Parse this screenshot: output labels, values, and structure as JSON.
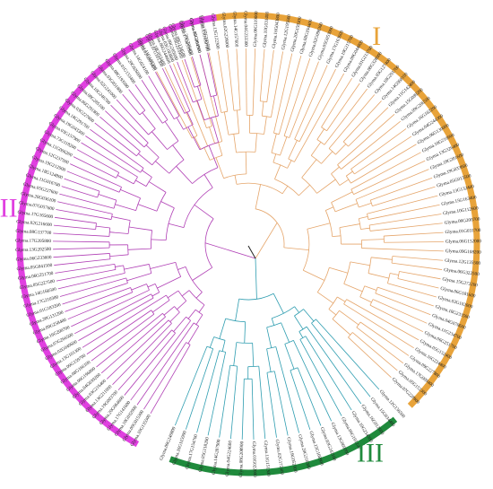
{
  "figure": {
    "clades": [
      {
        "id": "I",
        "label": "I",
        "color": "#E8A33A",
        "branch_color": "#E5A56A",
        "leaves": [
          "Glyma.11G188300",
          "Glyma.18G053400",
          "Glyma.03G183800",
          "Glyma.09G203900",
          "Glyma.17G051600",
          "Glyma.06G081900",
          "Glyma.07G203500",
          "Glyma.13G122300",
          "Glyma.02G226000",
          "Glyma.14G157600",
          "Glyma.04G233300",
          "Glyma.06G119000",
          "Glyma.10G031400",
          "Glyma.16G043800",
          "Glyma.12G195600",
          "Glyma.20G159300",
          "Glyma.08G194400",
          "Glyma.02G098300",
          "Glyma.05G053000",
          "Glyma.17G163600",
          "Glyma.19G215700",
          "Glyma.09G044800",
          "Glyma.01G213700",
          "Glyma.08G328000",
          "Glyma.03G127400",
          "Glyma.18G291700",
          "Glyma.14G068100",
          "Glyma.11G142400",
          "Glyma.15G089200",
          "Glyma.09G206500",
          "Glyma.16G182200",
          "Glyma.04G244300",
          "Glyma.06G130000",
          "Glyma.10G216600",
          "Glyma.13G326400",
          "Glyma.18G201600",
          "Glyma.19G033600",
          "Glyma.05G013500",
          "Glyma.13G132400",
          "Glyma.15G163400",
          "Glyma.10G112600",
          "Glyma.06G200700",
          "Glyma.01G031700",
          "Glyma.06G152000",
          "Glyma.09G108200",
          "Glyma.12G135500",
          "Glyma.06G322500",
          "Glyma.15G272200",
          "Glyma.06G181600",
          "Glyma.03G102000",
          "Glyma.18G233500",
          "Glyma.04G078600",
          "Glyma.11G234700",
          "Glyma.06G251700",
          "Glyma.05G152400",
          "Glyma.16G224400",
          "Glyma.09G227800",
          "Glyma.17G009400",
          "Glyma.05G152300",
          "Glyma.07G228900"
        ]
      },
      {
        "id": "II",
        "label": "II",
        "color": "#E040E0",
        "branch_color": "#B03FB5",
        "leaves": [
          "Glyma.10G135500",
          "Glyma.09G015300",
          "Glyma.10G032900",
          "Glyma.17G141600",
          "Glyma.20G064600",
          "Glyma.19G003700",
          "Glyma.13G211000",
          "Glyma.03G216400",
          "Glyma.04G039200",
          "Glyma.06G196800",
          "Glyma.08G166100",
          "Glyma.09G159700",
          "Glyma.15G101300",
          "Glyma.02G040600",
          "Glyma.07G266500",
          "Glyma.16G208700",
          "Glyma.09G258400",
          "Glyma.20G131200",
          "Glyma.01G183200",
          "Glyma.17G210300",
          "Glyma.14G166500",
          "Glyma.05G227500",
          "Glyma.06G251700",
          "Glyma.05G041500",
          "Glyma.06G233600",
          "Glyma.13G202500",
          "Glyma.17G205800",
          "Glyma.08G137700",
          "Glyma.02G216600",
          "Glyma.17G165600",
          "Glyma.07G057600",
          "Glyma.20G036100",
          "Glyma.05G227600",
          "Glyma.11G016700",
          "Glyma.18G124800",
          "Glyma.19G212900",
          "Glyma.12G237500",
          "Glyma.11G006200",
          "Glyma.73G118200",
          "Glyma.03G157900",
          "Glyma.19G043300",
          "Glyma.18G291700",
          "Glyma.03G227600",
          "Glyma.06G291800",
          "Glyma.08G285100",
          "Glyma.10G246700",
          "Glyma.02G241000",
          "Glyma.03G051800",
          "Glyma.08G193500",
          "Glyma.01G153400",
          "Glyma.20G026600",
          "Glyma.14G024100",
          "Glyma.02G003400",
          "Glyma.07G101300",
          "Glyma.06G244600",
          "Glyma.09G205600",
          "Glyma.09G134500",
          "Glyma.20G200400",
          "Glyma.15G204900",
          "Glyma.13G180700"
        ]
      },
      {
        "id": "III",
        "label": "III",
        "color": "#1F8A3C",
        "branch_color": "#2E9DB0",
        "leaves": [
          "Glyma.12G136500",
          "Glyma.15G034400",
          "Glyma.16G012600",
          "Glyma.10G234300",
          "Glyma.09G191200",
          "Glyma.13G069700",
          "Glyma.03G242100",
          "Glyma.15G108900",
          "Glyma.20G210300",
          "Glyma.19G052300",
          "Glyma.02G172400",
          "Glyma.11G151300",
          "Glyma.01G022000",
          "Glyma.08G208900",
          "Glyma.04G224600",
          "Glyma.14G207900",
          "Glyma.05G118200",
          "Glyma.17G154700",
          "Glyma.16G115900",
          "Glyma.09G246800"
        ]
      }
    ]
  }
}
